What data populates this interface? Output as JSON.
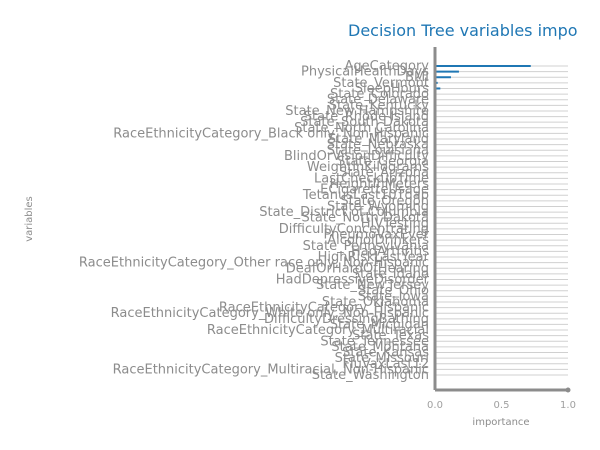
{
  "chart_data": {
    "type": "bar",
    "orientation": "horizontal",
    "title": "Decision Tree variables impo",
    "xlabel": "importance",
    "ylabel": "variables",
    "xlim": [
      0,
      1
    ],
    "x_ticks": [
      "0.0",
      "0.5",
      "1.0"
    ],
    "grid": "on",
    "colors": {
      "bar": "#1f77b4",
      "grid": "#d0d0d0",
      "axis": "#8c8c8c",
      "title": "#1f77b4",
      "text": "#8c8c8c"
    },
    "categories": [
      "AgeCategory",
      "PhysicalHealthDays",
      "BMI",
      "State_Vermont",
      "SleepHours",
      "State_Colorado",
      "State_Delaware",
      "State_Kentucky",
      "State_New Hampshire",
      "State_Rhode Island",
      "State_South Dakota",
      "State_North Carolina",
      "RaceEthnicityCategory_Black only, Non-Hispanic",
      "State_Maryland",
      "State_Nebraska",
      "State_Louisiana",
      "BlindOrVisionDifficulty",
      "State_Georgia",
      "WeightInKilograms",
      "State_Arizona",
      "LastCheckupTime",
      "HeightInMeters",
      "ECigaretteUsage",
      "TetanusLast10Tdap",
      "State_Oregon",
      "State_Wyoming",
      "State_District of Columbia",
      "State_North Dakota",
      "HIVTesting",
      "DifficultyConcentrating",
      "PneumoVaxEver",
      "AlcoholDrinkers",
      "State_Pennsylvania",
      "HadArthritis",
      "HighRiskLastYear",
      "RaceEthnicityCategory_Other race only, Non-Hispanic",
      "DeafOrHardOfHearing",
      "State_Idaho",
      "HadDepressiveDisorder",
      "State_New Jersey",
      "State_Ohio",
      "State_Iowa",
      "State_Oklahoma",
      "RaceEthnicityCategory_Hispanic",
      "RaceEthnicityCategory_White only, Non-Hispanic",
      "DifficultyDressingBathing",
      "State_Michigan",
      "RaceEthnicityCategory_Multiracial",
      "State_Texas",
      "State_Tennessee",
      "State_Montana",
      "State_Kansas",
      "State_Missouri",
      "FluVaxLast12",
      "RaceEthnicityCategory_Multiracial, Non-Hispanic",
      "State_Washington"
    ],
    "values": [
      0.72,
      0.18,
      0.12,
      0.02,
      0.04,
      0.0,
      0.0,
      0.0,
      0.0,
      0.0,
      0.0,
      0.0,
      0.0,
      0.0,
      0.0,
      0.0,
      0.0,
      0.0,
      0.0,
      0.0,
      0.0,
      0.0,
      0.0,
      0.0,
      0.0,
      0.0,
      0.0,
      0.0,
      0.0,
      0.0,
      0.0,
      0.0,
      0.0,
      0.0,
      0.0,
      0.0,
      0.0,
      0.0,
      0.0,
      0.0,
      0.0,
      0.0,
      0.0,
      0.0,
      0.0,
      0.0,
      0.0,
      0.0,
      0.0,
      0.0,
      0.0,
      0.0,
      0.0,
      0.0,
      0.0,
      0.0
    ]
  }
}
